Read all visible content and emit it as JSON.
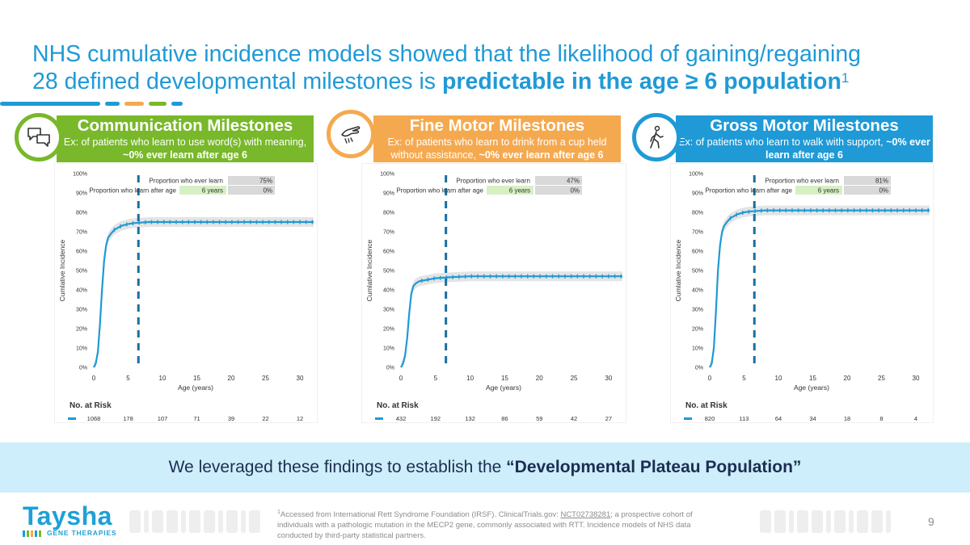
{
  "slide": {
    "title_line1": "NHS cumulative incidence models showed that the likelihood of gaining/regaining",
    "title_line2_plain": "28 defined developmental milestones is ",
    "title_line2_bold": "predictable in the age ≥ 6 population",
    "title_superscript": "1",
    "band_text_plain": "We leveraged these findings to establish the ",
    "band_text_bold": "“Developmental Plateau Population”",
    "footnote_superscript": "1",
    "footnote_part1": "Accessed from International Rett Syndrome Foundation (IRSF). ClinicalTrials.gov: ",
    "footnote_link": "NCT02738281",
    "footnote_part2": "; a prospective cohort of individuals with a pathologic mutation in the MECP2 gene, commonly associated with RTT. Incidence models of NHS data conducted by third-party statistical partners.",
    "page_number": "9",
    "logo_text": "Taysha",
    "logo_subtext": "GENE THERAPIES"
  },
  "colors": {
    "title_blue": "#1f9ad6",
    "communication": "#78b82a",
    "fine_motor": "#f5a94f",
    "gross_motor": "#1f9ad6",
    "curve": "#1f9ad6",
    "dash_line": "#1a6fa0",
    "band": "#cdeefa",
    "band_text": "#1d2d52"
  },
  "panels": [
    {
      "title": "Communication Milestones",
      "desc_plain": "Ex: of patients who learn to use word(s) with meaning, ",
      "desc_bold": "~0% ever learn after age 6",
      "icon": "speech-bubbles-icon",
      "color": "#78b82a"
    },
    {
      "title": "Fine Motor Milestones",
      "desc_plain": "Ex: of patients who learn to drink from a cup held without assistance, ",
      "desc_bold": "~0% ever learn after age 6",
      "icon": "hand-cup-icon",
      "color": "#f5a94f"
    },
    {
      "title": "Gross Motor Milestones",
      "desc_plain": "Ex: of patients who learn to walk with support, ",
      "desc_bold": "~0% ever learn after age 6",
      "icon": "walking-person-icon",
      "color": "#1f9ad6"
    }
  ],
  "chart_data": [
    {
      "type": "line",
      "ylabel": "Cumlative Incidence",
      "xlabel": "Age (years)",
      "x_ticks": [
        "0",
        "5",
        "10",
        "15",
        "20",
        "25",
        "30"
      ],
      "y_ticks": [
        "0%",
        "10%",
        "20%",
        "30%",
        "40%",
        "50%",
        "60%",
        "70%",
        "80%",
        "90%",
        "100%"
      ],
      "xlim": [
        0,
        32
      ],
      "ylim": [
        0,
        100
      ],
      "cutoff_age": 6.5,
      "series": [
        {
          "x": [
            0,
            0.3,
            0.6,
            0.9,
            1.2,
            1.5,
            1.8,
            2.1,
            2.5,
            3,
            3.5,
            4,
            5,
            6,
            8,
            12,
            20,
            32
          ],
          "y": [
            0,
            2,
            8,
            22,
            40,
            55,
            63,
            67,
            69,
            71,
            72,
            73,
            74,
            74.5,
            75,
            75,
            75,
            75
          ]
        }
      ],
      "legend_rows": [
        {
          "label": "Proportion who ever learn",
          "age": "",
          "value": "75%"
        },
        {
          "label": "Proportion who learn after age",
          "age": "6 years",
          "value": "0%"
        }
      ],
      "at_risk_label": "No. at Risk",
      "at_risk": [
        "1068",
        "178",
        "107",
        "71",
        "39",
        "22",
        "12"
      ]
    },
    {
      "type": "line",
      "ylabel": "Cumlative Incidence",
      "xlabel": "Age (years)",
      "x_ticks": [
        "0",
        "5",
        "10",
        "15",
        "20",
        "25",
        "30"
      ],
      "y_ticks": [
        "0%",
        "10%",
        "20%",
        "30%",
        "40%",
        "50%",
        "60%",
        "70%",
        "80%",
        "90%",
        "100%"
      ],
      "xlim": [
        0,
        32
      ],
      "ylim": [
        0,
        100
      ],
      "cutoff_age": 6.5,
      "series": [
        {
          "x": [
            0,
            0.3,
            0.6,
            0.9,
            1.2,
            1.5,
            1.8,
            2.2,
            2.7,
            3.5,
            5,
            7,
            10,
            20,
            32
          ],
          "y": [
            0,
            2,
            6,
            15,
            28,
            38,
            42,
            43.5,
            44.5,
            45,
            46,
            46.5,
            47,
            47,
            47
          ]
        }
      ],
      "legend_rows": [
        {
          "label": "Proportion who ever learn",
          "age": "",
          "value": "47%"
        },
        {
          "label": "Proportion who learn after age",
          "age": "6 years",
          "value": "0%"
        }
      ],
      "at_risk_label": "No. at Risk",
      "at_risk": [
        "432",
        "192",
        "132",
        "86",
        "59",
        "42",
        "27"
      ]
    },
    {
      "type": "line",
      "ylabel": "Cumlative Incidence",
      "xlabel": "Age (years)",
      "x_ticks": [
        "0",
        "5",
        "10",
        "15",
        "20",
        "25",
        "30"
      ],
      "y_ticks": [
        "0%",
        "10%",
        "20%",
        "30%",
        "40%",
        "50%",
        "60%",
        "70%",
        "80%",
        "90%",
        "100%"
      ],
      "xlim": [
        0,
        32
      ],
      "ylim": [
        0,
        100
      ],
      "cutoff_age": 6.5,
      "series": [
        {
          "x": [
            0,
            0.3,
            0.6,
            0.9,
            1.2,
            1.5,
            1.8,
            2.1,
            2.5,
            3,
            3.5,
            4,
            5,
            6,
            8,
            12,
            20,
            32
          ],
          "y": [
            0,
            2,
            10,
            28,
            50,
            63,
            70,
            73,
            75,
            77,
            78,
            79,
            80,
            80.5,
            81,
            81,
            81,
            81
          ]
        }
      ],
      "legend_rows": [
        {
          "label": "Proportion who ever learn",
          "age": "",
          "value": "81%"
        },
        {
          "label": "Proportion who learn after age",
          "age": "6 years",
          "value": "0%"
        }
      ],
      "at_risk_label": "No. at Risk",
      "at_risk": [
        "820",
        "113",
        "64",
        "34",
        "18",
        "8",
        "4"
      ]
    }
  ]
}
